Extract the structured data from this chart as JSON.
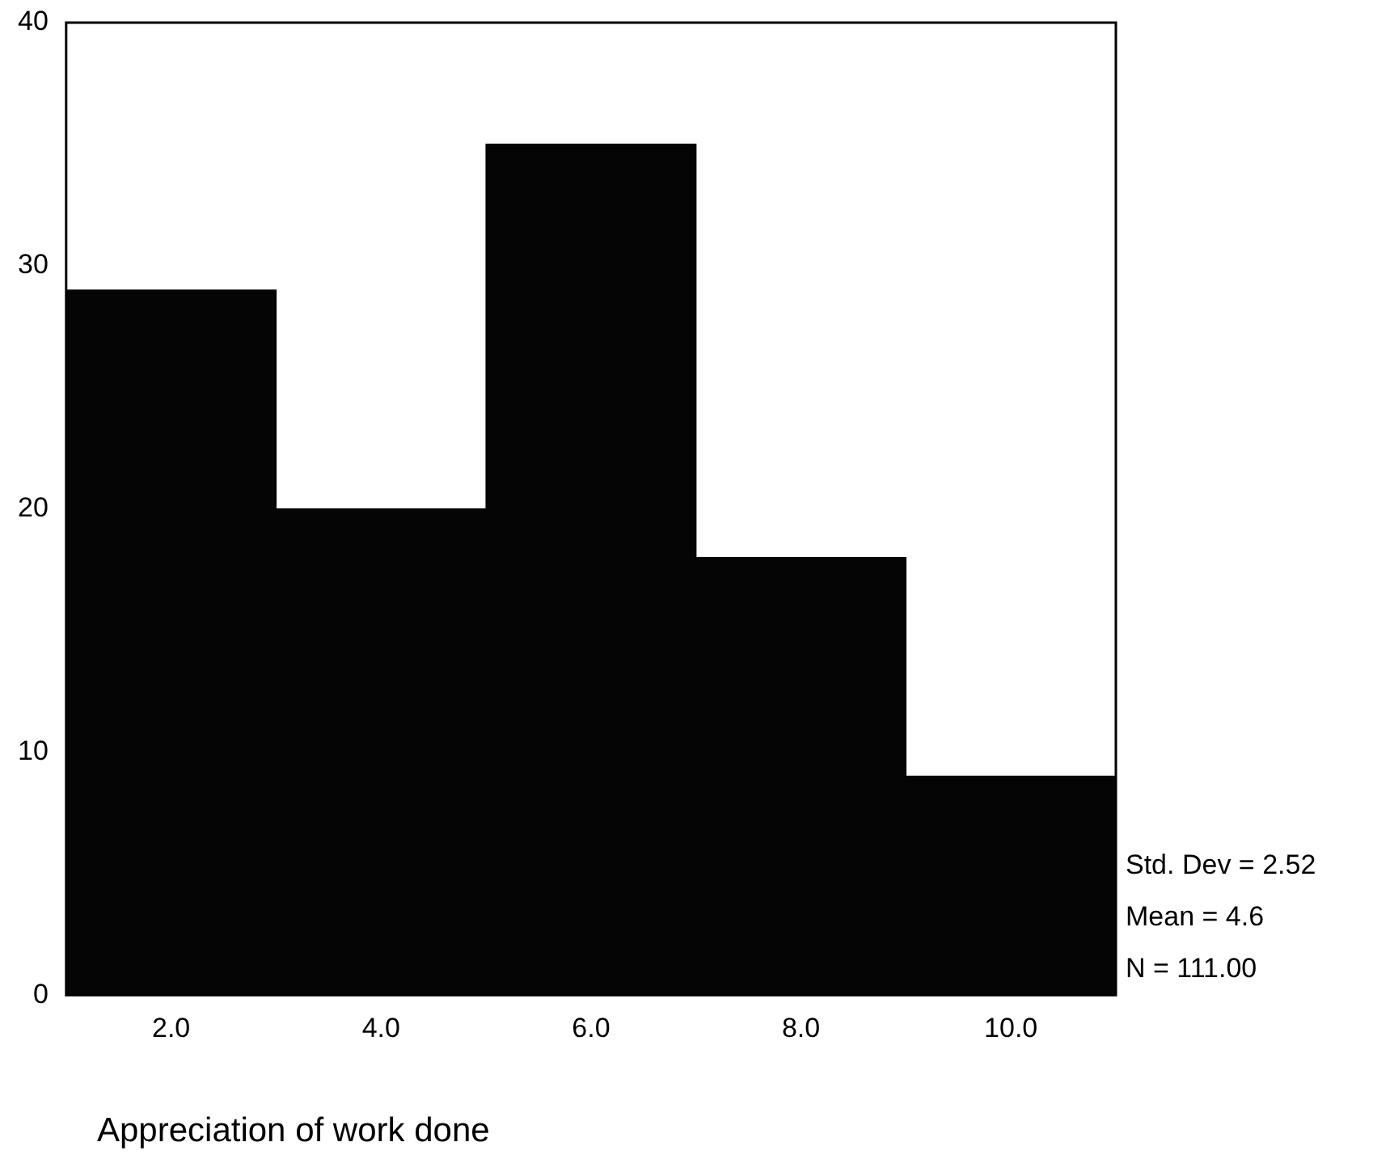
{
  "chart_data": {
    "type": "histogram",
    "xlabel": "Appreciation of work done",
    "bins": [
      1,
      3,
      5,
      7,
      9,
      11
    ],
    "values": [
      29,
      20,
      35,
      18,
      9
    ],
    "color": "#050505",
    "xlim": [
      1,
      11
    ],
    "xticks": [
      {
        "value": 2,
        "label": "2.0"
      },
      {
        "value": 4,
        "label": "4.0"
      },
      {
        "value": 6,
        "label": "6.0"
      },
      {
        "value": 8,
        "label": "8.0"
      },
      {
        "value": 10,
        "label": "10.0"
      }
    ],
    "ylim": [
      0,
      40
    ],
    "yticks": [
      0,
      10,
      20,
      30,
      40
    ],
    "grid": false,
    "legend": false,
    "annotations": [
      "Std. Dev = 2.52",
      "Mean = 4.6",
      "N = 111.00"
    ]
  }
}
